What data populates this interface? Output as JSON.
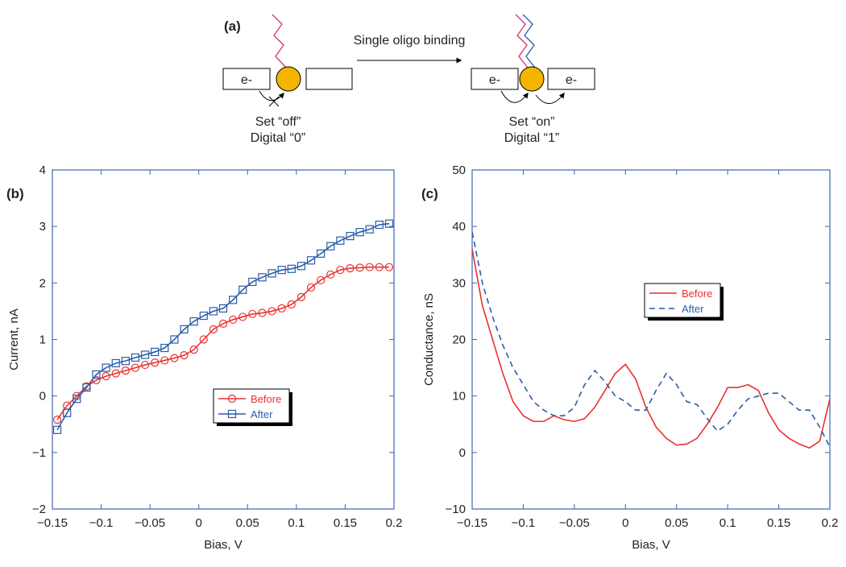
{
  "diagram": {
    "panel_label": "(a)",
    "arrow_label": "Single oligo binding",
    "before": {
      "electrode": "e-",
      "state": "Set “off”",
      "digit": "Digital “0”"
    },
    "after": {
      "electrode_left": "e-",
      "electrode_right": "e-",
      "state": "Set “on”",
      "digit": "Digital “1”"
    }
  },
  "chart_data": [
    {
      "type": "line",
      "panel_label": "(b)",
      "xlabel": "Bias, V",
      "ylabel": "Current, nA",
      "x": [
        -0.145,
        -0.135,
        -0.125,
        -0.115,
        -0.105,
        -0.095,
        -0.085,
        -0.075,
        -0.065,
        -0.055,
        -0.045,
        -0.035,
        -0.025,
        -0.015,
        -0.005,
        0.005,
        0.015,
        0.025,
        0.035,
        0.045,
        0.055,
        0.065,
        0.075,
        0.085,
        0.095,
        0.105,
        0.115,
        0.125,
        0.135,
        0.145,
        0.155,
        0.165,
        0.175,
        0.185,
        0.195
      ],
      "series": [
        {
          "name": "Before",
          "color": "#e8312f",
          "marker": "circle",
          "linestyle": "solid",
          "values": [
            -0.42,
            -0.17,
            0.0,
            0.17,
            0.28,
            0.35,
            0.4,
            0.45,
            0.5,
            0.55,
            0.59,
            0.63,
            0.67,
            0.72,
            0.82,
            1.0,
            1.18,
            1.28,
            1.35,
            1.4,
            1.45,
            1.47,
            1.5,
            1.55,
            1.62,
            1.75,
            1.92,
            2.05,
            2.15,
            2.23,
            2.26,
            2.27,
            2.28,
            2.28,
            2.28
          ]
        },
        {
          "name": "After",
          "color": "#2a5caa",
          "marker": "square",
          "linestyle": "solid",
          "values": [
            -0.6,
            -0.3,
            -0.05,
            0.15,
            0.38,
            0.5,
            0.58,
            0.62,
            0.68,
            0.73,
            0.78,
            0.85,
            1.0,
            1.18,
            1.32,
            1.42,
            1.5,
            1.55,
            1.7,
            1.88,
            2.02,
            2.1,
            2.17,
            2.23,
            2.25,
            2.3,
            2.4,
            2.52,
            2.65,
            2.75,
            2.83,
            2.9,
            2.95,
            3.03,
            3.05
          ]
        }
      ],
      "xlim": [
        -0.15,
        0.2
      ],
      "ylim": [
        -2,
        4
      ],
      "xticks": [
        {
          "value": -0.15,
          "label": "−0.15"
        },
        {
          "value": -0.1,
          "label": "−0.1"
        },
        {
          "value": -0.05,
          "label": "−0.05"
        },
        0,
        0.05,
        0.1,
        0.15,
        0.2
      ],
      "yticks": [
        {
          "value": -2,
          "label": "−2"
        },
        {
          "value": -1,
          "label": "−1"
        },
        0,
        1,
        2,
        3,
        4
      ]
    },
    {
      "type": "line",
      "panel_label": "(c)",
      "xlabel": "Bias, V",
      "ylabel": "Conductance, nS",
      "x": [
        -0.15,
        -0.14,
        -0.13,
        -0.12,
        -0.11,
        -0.1,
        -0.09,
        -0.08,
        -0.07,
        -0.06,
        -0.05,
        -0.04,
        -0.03,
        -0.02,
        -0.01,
        0,
        0.01,
        0.02,
        0.03,
        0.04,
        0.05,
        0.06,
        0.07,
        0.08,
        0.09,
        0.1,
        0.11,
        0.12,
        0.13,
        0.14,
        0.15,
        0.16,
        0.17,
        0.18,
        0.19,
        0.2
      ],
      "series": [
        {
          "name": "Before",
          "color": "#e8312f",
          "linestyle": "solid",
          "values": [
            36,
            26,
            20,
            14,
            9,
            6.5,
            5.5,
            5.5,
            6.5,
            5.8,
            5.5,
            6,
            8,
            11,
            14,
            15.6,
            13,
            8,
            4.5,
            2.5,
            1.3,
            1.5,
            2.5,
            5,
            8,
            11.5,
            11.5,
            12,
            11,
            7,
            4,
            2.5,
            1.5,
            0.8,
            2,
            9.5
          ]
        },
        {
          "name": "After",
          "color": "#2a5caa",
          "linestyle": "dashed",
          "values": [
            39,
            30,
            24,
            19,
            15,
            12,
            9,
            7.5,
            6.5,
            6.5,
            8,
            12,
            14.5,
            12.5,
            10,
            9,
            7.5,
            7.5,
            11,
            14,
            12,
            9,
            8.5,
            6,
            3.8,
            5,
            7.5,
            9.5,
            10,
            10.5,
            10.5,
            9,
            7.5,
            7.5,
            4.5,
            1
          ]
        }
      ],
      "xlim": [
        -0.15,
        0.2
      ],
      "ylim": [
        -10,
        50
      ],
      "xticks": [
        {
          "value": -0.15,
          "label": "−0.15"
        },
        {
          "value": -0.1,
          "label": "−0.1"
        },
        {
          "value": -0.05,
          "label": "−0.05"
        },
        0,
        0.05,
        0.1,
        0.15,
        0.2
      ],
      "yticks": [
        {
          "value": -10,
          "label": "−10"
        },
        0,
        10,
        20,
        30,
        40,
        50
      ]
    }
  ]
}
